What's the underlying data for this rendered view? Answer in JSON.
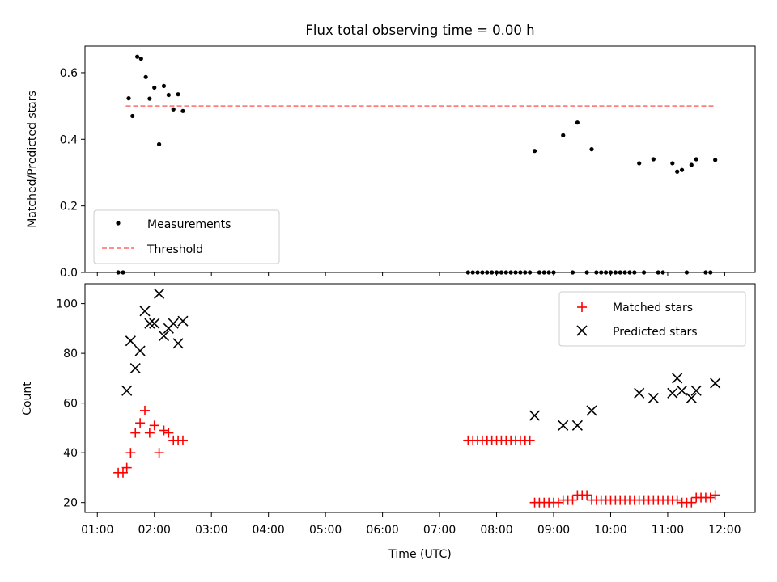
{
  "chart_data": [
    {
      "type": "scatter",
      "title": "Flux total observing time = 0.00 h",
      "ylabel": "Matched/Predicted stars",
      "xlim": [
        "00:47",
        "12:32"
      ],
      "ylim": [
        0,
        0.68
      ],
      "yticks": [
        "0.0",
        "0.2",
        "0.4",
        "0.6"
      ],
      "grid": false,
      "legend_position": "lower-left",
      "series": [
        {
          "name": "Measurements",
          "kind": "scatter",
          "color": "#000000",
          "points": [
            [
              "01:22",
              0.0
            ],
            [
              "01:27",
              0.0
            ],
            [
              "01:33",
              0.523
            ],
            [
              "01:37",
              0.47
            ],
            [
              "01:42",
              0.648
            ],
            [
              "01:46",
              0.642
            ],
            [
              "01:51",
              0.587
            ],
            [
              "01:55",
              0.522
            ],
            [
              "02:00",
              0.555
            ],
            [
              "02:05",
              0.385
            ],
            [
              "02:10",
              0.56
            ],
            [
              "02:15",
              0.533
            ],
            [
              "02:20",
              0.49
            ],
            [
              "02:25",
              0.535
            ],
            [
              "02:30",
              0.485
            ],
            [
              "07:30",
              0.0
            ],
            [
              "07:35",
              0.0
            ],
            [
              "07:40",
              0.0
            ],
            [
              "07:45",
              0.0
            ],
            [
              "07:50",
              0.0
            ],
            [
              "07:55",
              0.0
            ],
            [
              "08:00",
              0.0
            ],
            [
              "08:05",
              0.0
            ],
            [
              "08:10",
              0.0
            ],
            [
              "08:15",
              0.0
            ],
            [
              "08:20",
              0.0
            ],
            [
              "08:25",
              0.0
            ],
            [
              "08:30",
              0.0
            ],
            [
              "08:35",
              0.0
            ],
            [
              "08:40",
              0.365
            ],
            [
              "08:45",
              0.0
            ],
            [
              "08:50",
              0.0
            ],
            [
              "08:55",
              0.0
            ],
            [
              "09:00",
              0.0
            ],
            [
              "09:10",
              0.412
            ],
            [
              "09:20",
              0.0
            ],
            [
              "09:25",
              0.45
            ],
            [
              "09:35",
              0.0
            ],
            [
              "09:40",
              0.37
            ],
            [
              "09:45",
              0.0
            ],
            [
              "09:50",
              0.0
            ],
            [
              "09:55",
              0.0
            ],
            [
              "10:00",
              0.0
            ],
            [
              "10:05",
              0.0
            ],
            [
              "10:10",
              0.0
            ],
            [
              "10:15",
              0.0
            ],
            [
              "10:20",
              0.0
            ],
            [
              "10:25",
              0.0
            ],
            [
              "10:30",
              0.328
            ],
            [
              "10:35",
              0.0
            ],
            [
              "10:45",
              0.34
            ],
            [
              "10:50",
              0.0
            ],
            [
              "10:55",
              0.0
            ],
            [
              "11:05",
              0.328
            ],
            [
              "11:10",
              0.303
            ],
            [
              "11:15",
              0.308
            ],
            [
              "11:20",
              0.0
            ],
            [
              "11:25",
              0.323
            ],
            [
              "11:30",
              0.34
            ],
            [
              "11:40",
              0.0
            ],
            [
              "11:45",
              0.0
            ],
            [
              "11:50",
              0.338
            ]
          ]
        },
        {
          "name": "Threshold",
          "kind": "line",
          "style": "dashed",
          "color": "#ff7f7f",
          "points": [
            [
              "01:30",
              0.5
            ],
            [
              "11:50",
              0.5
            ]
          ]
        }
      ]
    },
    {
      "type": "scatter",
      "xlabel": "Time (UTC)",
      "ylabel": "Count",
      "xlim": [
        "00:47",
        "12:32"
      ],
      "ylim": [
        16,
        108
      ],
      "xticks": [
        "01:00",
        "02:00",
        "03:00",
        "04:00",
        "05:00",
        "06:00",
        "07:00",
        "08:00",
        "09:00",
        "10:00",
        "11:00",
        "12:00"
      ],
      "yticks": [
        "20",
        "40",
        "60",
        "80",
        "100"
      ],
      "grid": false,
      "legend_position": "top-right",
      "series": [
        {
          "name": "Matched stars",
          "marker": "plus",
          "color": "#ff0000",
          "points": [
            [
              "01:22",
              32
            ],
            [
              "01:27",
              32
            ],
            [
              "01:31",
              34
            ],
            [
              "01:35",
              40
            ],
            [
              "01:40",
              48
            ],
            [
              "01:45",
              52
            ],
            [
              "01:50",
              57
            ],
            [
              "01:55",
              48
            ],
            [
              "02:00",
              51
            ],
            [
              "02:05",
              40
            ],
            [
              "02:10",
              49
            ],
            [
              "02:15",
              48
            ],
            [
              "02:20",
              45
            ],
            [
              "02:25",
              45
            ],
            [
              "02:30",
              45
            ],
            [
              "07:30",
              45
            ],
            [
              "07:35",
              45
            ],
            [
              "07:40",
              45
            ],
            [
              "07:45",
              45
            ],
            [
              "07:50",
              45
            ],
            [
              "07:55",
              45
            ],
            [
              "08:00",
              45
            ],
            [
              "08:05",
              45
            ],
            [
              "08:10",
              45
            ],
            [
              "08:15",
              45
            ],
            [
              "08:20",
              45
            ],
            [
              "08:25",
              45
            ],
            [
              "08:30",
              45
            ],
            [
              "08:35",
              45
            ],
            [
              "08:40",
              20
            ],
            [
              "08:45",
              20
            ],
            [
              "08:50",
              20
            ],
            [
              "08:55",
              20
            ],
            [
              "09:00",
              20
            ],
            [
              "09:05",
              20
            ],
            [
              "09:10",
              21
            ],
            [
              "09:15",
              21
            ],
            [
              "09:20",
              21
            ],
            [
              "09:25",
              23
            ],
            [
              "09:30",
              23
            ],
            [
              "09:35",
              23
            ],
            [
              "09:40",
              21
            ],
            [
              "09:45",
              21
            ],
            [
              "09:50",
              21
            ],
            [
              "09:55",
              21
            ],
            [
              "10:00",
              21
            ],
            [
              "10:05",
              21
            ],
            [
              "10:10",
              21
            ],
            [
              "10:15",
              21
            ],
            [
              "10:20",
              21
            ],
            [
              "10:25",
              21
            ],
            [
              "10:30",
              21
            ],
            [
              "10:35",
              21
            ],
            [
              "10:40",
              21
            ],
            [
              "10:45",
              21
            ],
            [
              "10:50",
              21
            ],
            [
              "10:55",
              21
            ],
            [
              "11:00",
              21
            ],
            [
              "11:05",
              21
            ],
            [
              "11:10",
              21
            ],
            [
              "11:15",
              20
            ],
            [
              "11:20",
              20
            ],
            [
              "11:25",
              20
            ],
            [
              "11:30",
              22
            ],
            [
              "11:35",
              22
            ],
            [
              "11:40",
              22
            ],
            [
              "11:45",
              22
            ],
            [
              "11:50",
              23
            ]
          ]
        },
        {
          "name": "Predicted stars",
          "marker": "x",
          "color": "#000000",
          "points": [
            [
              "01:31",
              65
            ],
            [
              "01:35",
              85
            ],
            [
              "01:40",
              74
            ],
            [
              "01:45",
              81
            ],
            [
              "01:50",
              97
            ],
            [
              "01:55",
              92
            ],
            [
              "02:00",
              92
            ],
            [
              "02:05",
              104
            ],
            [
              "02:10",
              87
            ],
            [
              "02:15",
              90
            ],
            [
              "02:20",
              92
            ],
            [
              "02:25",
              84
            ],
            [
              "02:30",
              93
            ],
            [
              "08:40",
              55
            ],
            [
              "09:10",
              51
            ],
            [
              "09:25",
              51
            ],
            [
              "09:40",
              57
            ],
            [
              "10:30",
              64
            ],
            [
              "10:45",
              62
            ],
            [
              "11:05",
              64
            ],
            [
              "11:10",
              70
            ],
            [
              "11:15",
              65
            ],
            [
              "11:25",
              62
            ],
            [
              "11:30",
              65
            ],
            [
              "11:50",
              68
            ]
          ]
        }
      ]
    }
  ]
}
